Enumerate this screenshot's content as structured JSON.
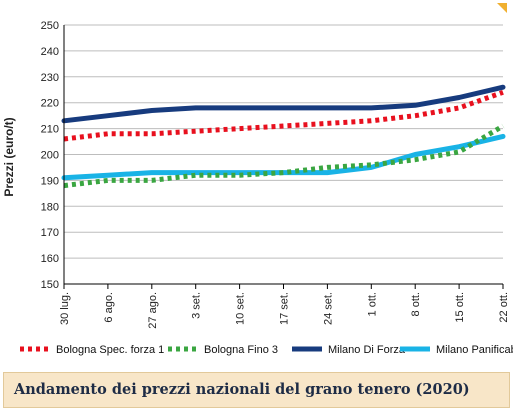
{
  "caption": "Andamento dei prezzi nazionali del grano tenero (2020)",
  "chart_data": {
    "type": "line",
    "title": "",
    "xlabel": "",
    "ylabel": "Prezzi (euro/t)",
    "categories": [
      "30 lug.",
      "6 ago.",
      "27 ago.",
      "3 set.",
      "10 set.",
      "17 set.",
      "24 set.",
      "1 ott.",
      "8 ott.",
      "15 ott.",
      "22 ott."
    ],
    "ylim": [
      150,
      250
    ],
    "yticks": [
      150,
      160,
      170,
      180,
      190,
      200,
      210,
      220,
      230,
      240,
      250
    ],
    "grid": "horizontal",
    "legend_position": "bottom",
    "series": [
      {
        "name": "Bologna Spec. forza 1",
        "color": "#e8101e",
        "style": "dotted",
        "values": [
          206,
          208,
          208,
          209,
          210,
          211,
          212,
          213,
          215,
          218,
          224
        ]
      },
      {
        "name": "Bologna Fino 3",
        "color": "#3aa641",
        "style": "dotted",
        "values": [
          188,
          190,
          190,
          192,
          192,
          193,
          195,
          196,
          198,
          201,
          211
        ]
      },
      {
        "name": "Milano Di Forza",
        "color": "#173b7e",
        "style": "solid",
        "values": [
          213,
          215,
          217,
          218,
          218,
          218,
          218,
          218,
          219,
          222,
          226
        ]
      },
      {
        "name": "Milano Panificabile",
        "color": "#19b3e6",
        "style": "solid",
        "values": [
          191,
          192,
          193,
          193,
          193,
          193,
          193,
          195,
          200,
          203,
          207
        ]
      }
    ]
  }
}
